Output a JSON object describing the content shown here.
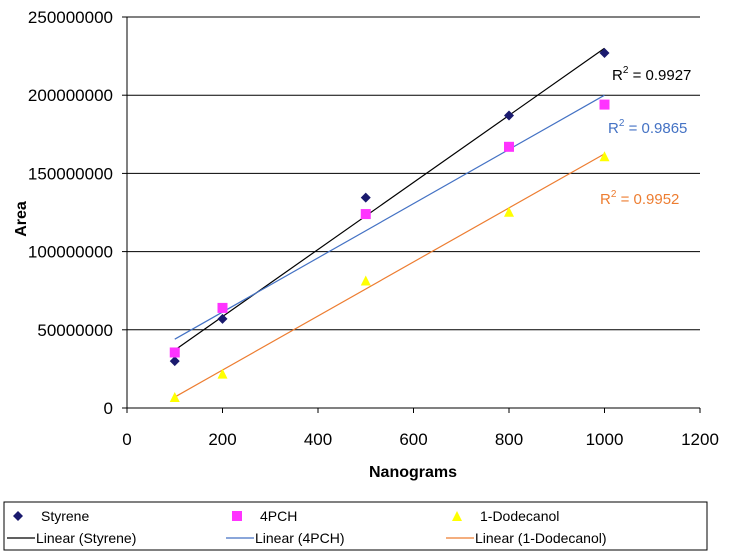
{
  "chart_data": {
    "type": "scatter",
    "xlabel": "Nanograms",
    "ylabel": "Area",
    "xlim": [
      0,
      1200
    ],
    "ylim": [
      0,
      250000000
    ],
    "x_ticks": [
      "0",
      "200",
      "400",
      "600",
      "800",
      "1000",
      "1200"
    ],
    "y_ticks": [
      "0",
      "50000000",
      "100000000",
      "150000000",
      "200000000",
      "250000000"
    ],
    "grid": "horizontal",
    "legend_position": "bottom",
    "series": [
      {
        "name": "Styrene",
        "marker": "diamond",
        "color": "#1a1a6e",
        "x": [
          100,
          200,
          500,
          800,
          1000
        ],
        "y": [
          30000000,
          57000000,
          134500000,
          187000000,
          227000000
        ]
      },
      {
        "name": "4PCH",
        "marker": "square",
        "color": "#ff33ff",
        "x": [
          100,
          200,
          500,
          800,
          1000
        ],
        "y": [
          35500000,
          64000000,
          124000000,
          167000000,
          194000000
        ]
      },
      {
        "name": "1-Dodecanol",
        "marker": "triangle",
        "color": "#ffff00",
        "x": [
          100,
          200,
          500,
          800,
          1000
        ],
        "y": [
          7000000,
          22000000,
          81500000,
          125500000,
          161000000
        ]
      }
    ],
    "trendlines": [
      {
        "name": "Linear (Styrene)",
        "color": "#000000",
        "x": [
          100,
          1000
        ],
        "y": [
          37000000,
          230000000
        ],
        "r2_label": "R",
        "r2_sup": "2",
        "r2_value": " = 0.9927"
      },
      {
        "name": "Linear (4PCH)",
        "color": "#4472c4",
        "x": [
          100,
          1000
        ],
        "y": [
          44000000,
          200000000
        ],
        "r2_label": "R",
        "r2_sup": "2",
        "r2_value": " = 0.9865"
      },
      {
        "name": "Linear (1-Dodecanol)",
        "color": "#ed7d31",
        "x": [
          100,
          1000
        ],
        "y": [
          7000000,
          162500000
        ],
        "r2_label": "R",
        "r2_sup": "2",
        "r2_value": " = 0.9952"
      }
    ]
  }
}
